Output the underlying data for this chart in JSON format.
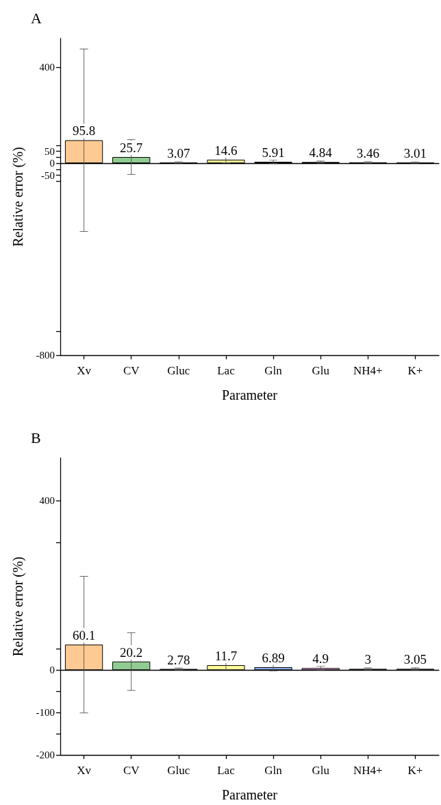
{
  "chart_data": [
    {
      "type": "bar",
      "title": "A",
      "xlabel": "Parameter",
      "ylabel": "Relative error (%)",
      "categories": [
        "Xv",
        "CV",
        "Gluc",
        "Lac",
        "Gln",
        "Glu",
        "NH4+",
        "K+"
      ],
      "values": [
        95.8,
        25.7,
        3.07,
        14.6,
        5.91,
        4.84,
        3.46,
        3.01
      ],
      "errors": [
        380,
        72.5,
        2.5,
        13.1,
        7.9,
        4.0,
        2.5,
        2.1
      ],
      "colors": [
        "#fdca93",
        "#90cc92",
        "#c6b0db",
        "#fdfa98",
        "#8fb3f2",
        "#f8b3ec",
        "#b3b088",
        "#a5dff0"
      ],
      "ylim": [
        -800,
        520
      ],
      "yticks": [
        -800,
        {
          "value": -700,
          "label": null
        },
        {
          "value": -75,
          "label": null
        },
        -50,
        {
          "value": -25,
          "label": null
        },
        0,
        {
          "value": 25,
          "label": null
        },
        50,
        {
          "value": 75,
          "label": null
        },
        400
      ],
      "data_labels": true
    },
    {
      "type": "bar",
      "title": "B",
      "xlabel": "Parameter",
      "ylabel": "Relative error (%)",
      "categories": [
        "Xv",
        "CV",
        "Gluc",
        "Lac",
        "Gln",
        "Glu",
        "NH4+",
        "K+"
      ],
      "values": [
        60.1,
        20.2,
        2.78,
        11.7,
        6.89,
        4.9,
        3,
        3.05
      ],
      "errors": [
        161,
        68,
        2.1,
        10.6,
        8.6,
        4.2,
        2.3,
        2.3
      ],
      "colors": [
        "#fdca93",
        "#90cc92",
        "#c6b0db",
        "#fdfa98",
        "#8fb3f2",
        "#f8b3ec",
        "#b3b088",
        "#a5dff0"
      ],
      "ylim": [
        -200,
        500
      ],
      "yticks": [
        -200,
        {
          "value": -150,
          "label": null
        },
        -100,
        {
          "value": -50,
          "label": null
        },
        0,
        {
          "value": 50,
          "label": null
        },
        {
          "value": 300,
          "label": null
        },
        400
      ],
      "data_labels": true
    }
  ]
}
